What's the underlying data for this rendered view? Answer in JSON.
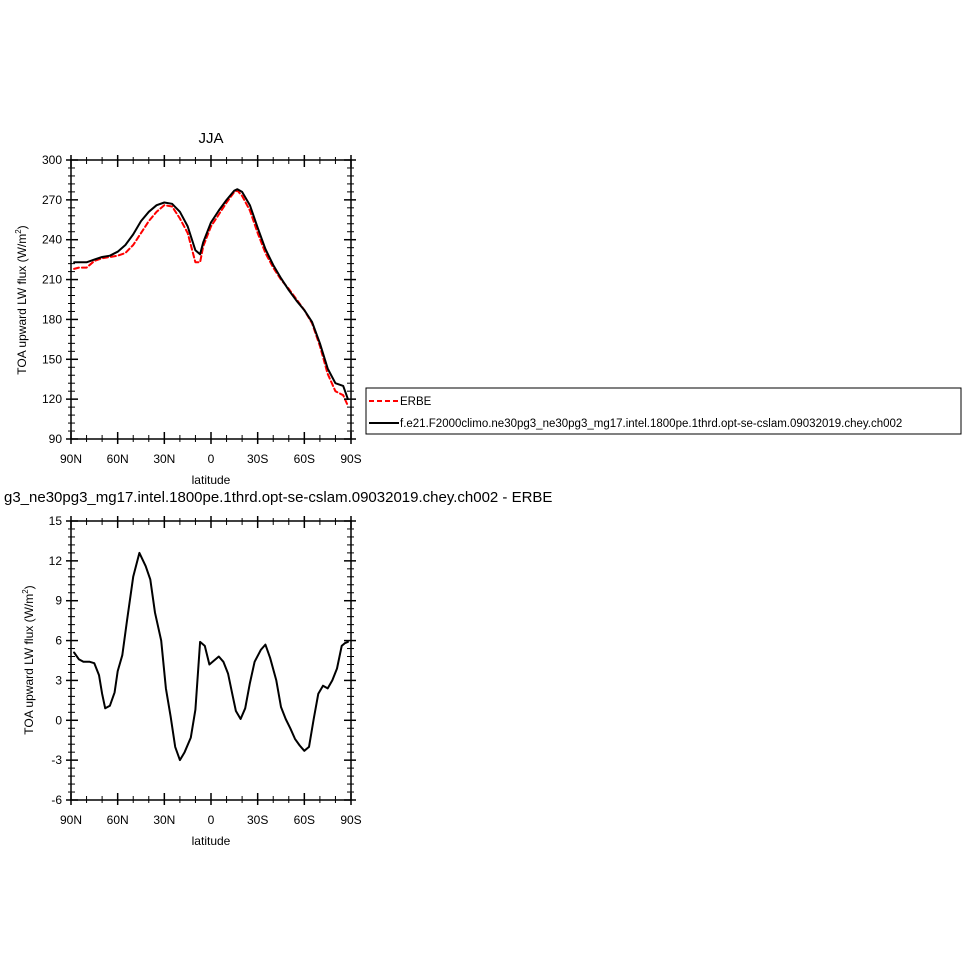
{
  "chart_data": [
    {
      "type": "line",
      "title": "JJA",
      "xlabel": "latitude",
      "ylabel": "TOA upward LW flux (W/m",
      "ylabel_sup": "2",
      "ylabel_close": ")",
      "xlim": [
        90,
        -90
      ],
      "ylim": [
        90,
        300
      ],
      "x_ticks": [
        90,
        60,
        30,
        0,
        -30,
        -60,
        -90
      ],
      "x_tick_labels": [
        "90N",
        "60N",
        "30N",
        "0",
        "30S",
        "60S",
        "90S"
      ],
      "y_ticks": [
        90,
        120,
        150,
        180,
        210,
        240,
        270,
        300
      ],
      "y_tick_labels": [
        "90",
        "120",
        "150",
        "180",
        "210",
        "240",
        "270",
        "300"
      ],
      "legend": {
        "placement": "right",
        "entries": [
          {
            "label": "ERBE",
            "color": "#ff0000",
            "style": "dashed"
          },
          {
            "label": "f.e21.F2000climo.ne30pg3_ne30pg3_mg17.intel.1800pe.1thrd.opt-se-cslam.09032019.chey.ch002",
            "color": "#000000",
            "style": "solid"
          }
        ]
      },
      "series": [
        {
          "name": "ERBE",
          "color": "#ff0000",
          "style": "dashed",
          "x": [
            88,
            85,
            80,
            75,
            70,
            65,
            60,
            55,
            50,
            45,
            40,
            35,
            30,
            25,
            20,
            15,
            10,
            7,
            5,
            0,
            -5,
            -10,
            -15,
            -17,
            -20,
            -25,
            -30,
            -35,
            -40,
            -45,
            -50,
            -55,
            -60,
            -65,
            -70,
            -75,
            -80,
            -85,
            -88
          ],
          "y": [
            218,
            219,
            219,
            224,
            226,
            227,
            228,
            230,
            236,
            245,
            254,
            261,
            266,
            265,
            256,
            245,
            223,
            223,
            235,
            250,
            259,
            268,
            276,
            277,
            273,
            262,
            245,
            230,
            219,
            210,
            203,
            195,
            187,
            177,
            160,
            139,
            126,
            123,
            115
          ]
        },
        {
          "name": "f.e21.F2000climo.ne30pg3_ne30pg3_mg17.intel.1800pe.1thrd.opt-se-cslam.09032019.chey.ch002",
          "color": "#000000",
          "style": "solid",
          "x": [
            88,
            85,
            80,
            75,
            70,
            65,
            60,
            55,
            50,
            45,
            40,
            35,
            30,
            25,
            20,
            15,
            10,
            7,
            5,
            0,
            -5,
            -10,
            -15,
            -17,
            -20,
            -25,
            -30,
            -35,
            -40,
            -45,
            -50,
            -55,
            -60,
            -65,
            -70,
            -75,
            -80,
            -85,
            -88
          ],
          "y": [
            223,
            223,
            223,
            225,
            227,
            228,
            231,
            236,
            244,
            254,
            261,
            266,
            268,
            267,
            261,
            250,
            232,
            229,
            238,
            253,
            262,
            270,
            277,
            278,
            276,
            266,
            249,
            233,
            221,
            211,
            202,
            194,
            187,
            178,
            162,
            143,
            132,
            130,
            120
          ]
        }
      ]
    },
    {
      "type": "line",
      "title": "g3_ne30pg3_mg17.intel.1800pe.1thrd.opt-se-cslam.09032019.chey.ch002 - ERBE",
      "xlabel": "latitude",
      "ylabel": "TOA upward LW flux (W/m",
      "ylabel_sup": "2",
      "ylabel_close": ")",
      "xlim": [
        90,
        -90
      ],
      "ylim": [
        -6,
        15
      ],
      "x_ticks": [
        90,
        60,
        30,
        0,
        -30,
        -60,
        -90
      ],
      "x_tick_labels": [
        "90N",
        "60N",
        "30N",
        "0",
        "30S",
        "60S",
        "90S"
      ],
      "y_ticks": [
        -6,
        -3,
        0,
        3,
        6,
        9,
        12,
        15
      ],
      "y_tick_labels": [
        "-6",
        "-3",
        "0",
        "3",
        "6",
        "9",
        "12",
        "15"
      ],
      "series": [
        {
          "color": "#000000",
          "style": "solid",
          "x": [
            88,
            85,
            82,
            78,
            75,
            72,
            70,
            68,
            65,
            62,
            60,
            57,
            54,
            50,
            46,
            42,
            39,
            36,
            32,
            29,
            26,
            23,
            20,
            17,
            13,
            10,
            7,
            4,
            1,
            -2,
            -5,
            -8,
            -11,
            -14,
            -16,
            -19,
            -22,
            -25,
            -28,
            -32,
            -35,
            -38,
            -42,
            -45,
            -48,
            -51,
            -54,
            -57,
            -60,
            -63,
            -66,
            -69,
            -72,
            -75,
            -78,
            -81,
            -84,
            -86,
            -88
          ],
          "y": [
            5.1,
            4.6,
            4.4,
            4.4,
            4.3,
            3.4,
            2.0,
            0.9,
            1.1,
            2.1,
            3.7,
            4.9,
            7.5,
            10.8,
            12.6,
            11.6,
            10.6,
            8.1,
            6.0,
            2.4,
            0.3,
            -2.0,
            -3.0,
            -2.4,
            -1.3,
            0.8,
            5.9,
            5.6,
            4.2,
            4.5,
            4.8,
            4.4,
            3.5,
            1.8,
            0.7,
            0.1,
            0.9,
            2.8,
            4.4,
            5.3,
            5.7,
            4.7,
            3.0,
            1.0,
            0.1,
            -0.6,
            -1.4,
            -1.9,
            -2.3,
            -2.0,
            0.1,
            2.0,
            2.6,
            2.4,
            3.0,
            3.9,
            5.6,
            5.8,
            5.9
          ]
        }
      ]
    }
  ]
}
